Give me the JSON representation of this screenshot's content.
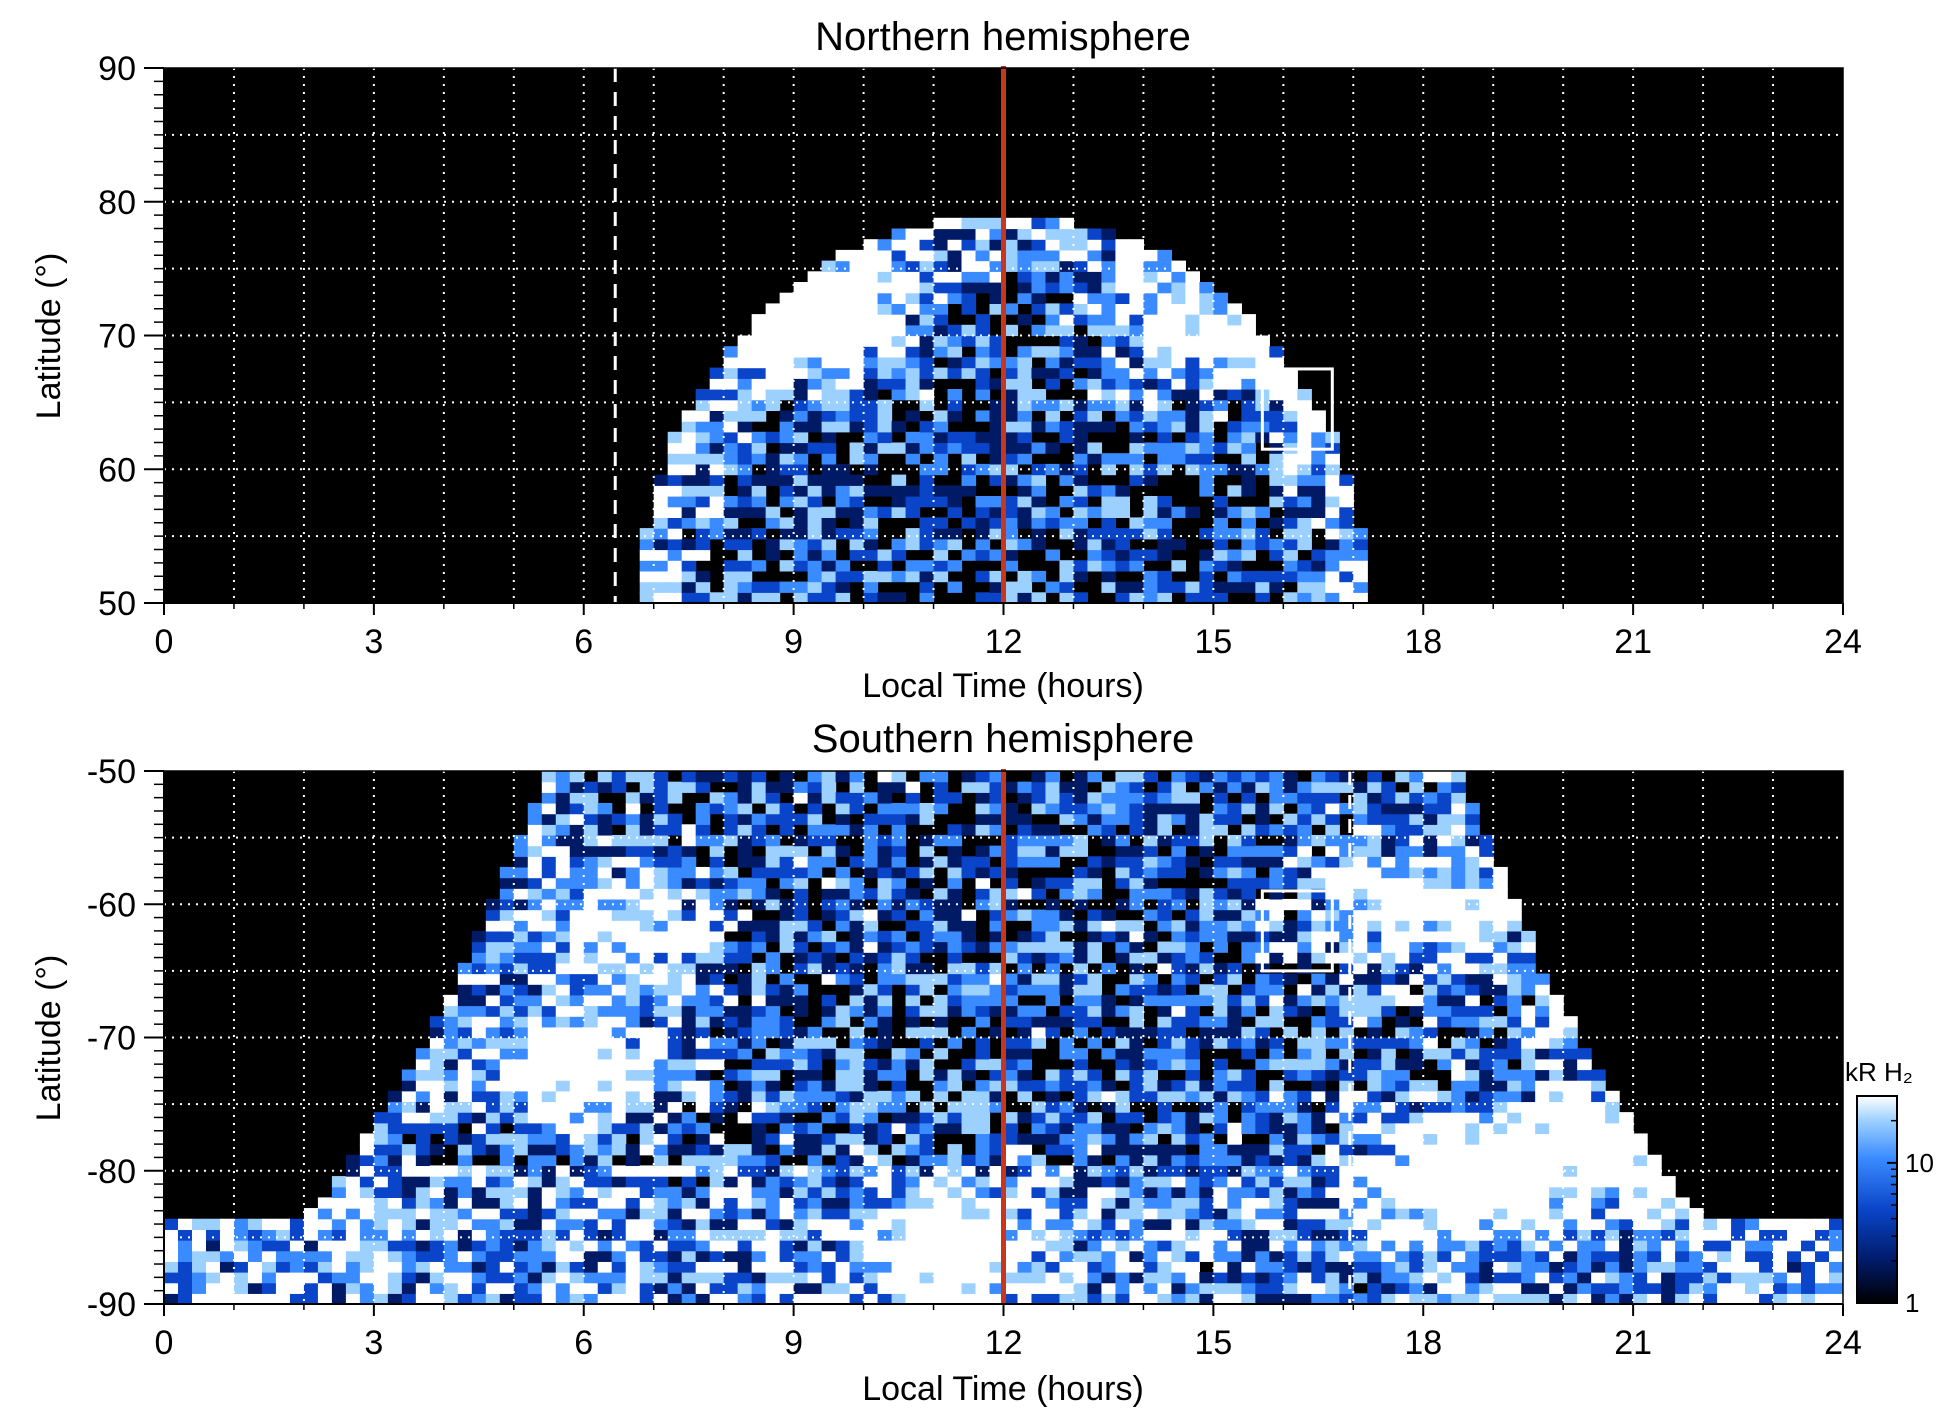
{
  "chart_data": [
    {
      "type": "heatmap",
      "title": "Northern hemisphere",
      "xlabel": "Local Time (hours)",
      "ylabel": "Latitude (°)",
      "xlim": [
        0,
        24
      ],
      "ylim": [
        50,
        90
      ],
      "xticks": [
        0,
        3,
        6,
        9,
        12,
        15,
        18,
        21,
        24
      ],
      "yticks": [
        50,
        60,
        70,
        80,
        90
      ],
      "x_tick_labels": [
        "0",
        "3",
        "6",
        "9",
        "12",
        "15",
        "18",
        "21",
        "24"
      ],
      "y_tick_labels": [
        "50",
        "60",
        "70",
        "80",
        "90"
      ],
      "grid": true,
      "coverage": {
        "lt_center": 12,
        "lt_halfwidth": 5.2,
        "max_lat": 79
      },
      "bright_regions": [
        {
          "lt": 9.5,
          "lat": 71,
          "strength": 1.0
        },
        {
          "lt": 14.5,
          "lat": 70,
          "strength": 0.6
        }
      ],
      "subsolar_line_lt": 12,
      "terminator_dashed_lt": 6.45,
      "box": {
        "lt": [
          15.7,
          16.7
        ],
        "lat": [
          61.5,
          67.5
        ]
      }
    },
    {
      "type": "heatmap",
      "title": "Southern hemisphere",
      "xlabel": "Local Time (hours)",
      "ylabel": "Latitude (°)",
      "xlim": [
        0,
        24
      ],
      "ylim": [
        -90,
        -50
      ],
      "xticks": [
        0,
        3,
        6,
        9,
        12,
        15,
        18,
        21,
        24
      ],
      "yticks": [
        -90,
        -80,
        -70,
        -60,
        -50
      ],
      "x_tick_labels": [
        "0",
        "3",
        "6",
        "9",
        "12",
        "15",
        "18",
        "21",
        "24"
      ],
      "y_tick_labels": [
        "-90",
        "-80",
        "-70",
        "-60",
        "-50"
      ],
      "grid": true,
      "coverage": {
        "lt_center": 12,
        "lt_halfwidth_top": 6.5,
        "lt_halfwidth_bottom": 12
      },
      "bright_regions": [
        {
          "lt": 5.8,
          "lat": -72,
          "strength": 1.0
        },
        {
          "lt": 6.5,
          "lat": -62,
          "strength": 0.8
        },
        {
          "lt": 17.8,
          "lat": -60,
          "strength": 0.9
        },
        {
          "lt": 18.5,
          "lat": -80,
          "strength": 1.0
        },
        {
          "lt": 20.5,
          "lat": -78,
          "strength": 0.7
        },
        {
          "lt": 11.2,
          "lat": -86,
          "strength": 0.8
        }
      ],
      "subsolar_line_lt": 12,
      "terminator_dashed_lt": 16.95,
      "box": {
        "lt": [
          15.7,
          16.7
        ],
        "lat": [
          -59,
          -65
        ]
      }
    }
  ],
  "colorbar": {
    "label": "kR H₂",
    "scale": "log",
    "range": [
      1,
      30
    ],
    "ticks": [
      1,
      10
    ],
    "tick_labels": [
      "1",
      "10"
    ],
    "colors": [
      "#000000",
      "#001a66",
      "#0a44c8",
      "#3a8bff",
      "#9cd0ff",
      "#ffffff"
    ]
  },
  "colors": {
    "subsolar_line": "#c8361b",
    "grid": "#ffffff",
    "background": "#000000"
  }
}
